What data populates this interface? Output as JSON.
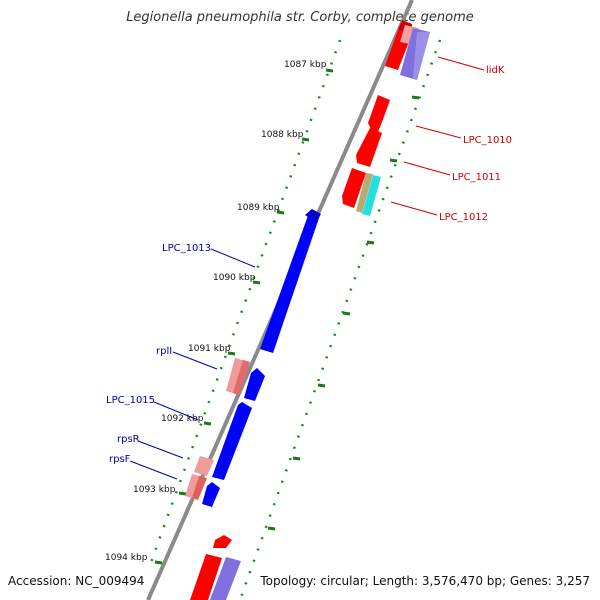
{
  "title": "Legionella pneumophila str. Corby, complete genome",
  "footer": {
    "accession": "Accession: NC_009494",
    "stats": "Topology: circular; Length: 3,576,470 bp; Genes: 3,257"
  },
  "scale_ticks": [
    {
      "label": "1087 kbp"
    },
    {
      "label": "1088 kbp"
    },
    {
      "label": "1089 kbp"
    },
    {
      "label": "1090 kbp"
    },
    {
      "label": "1091 kbp"
    },
    {
      "label": "1092 kbp"
    },
    {
      "label": "1093 kbp"
    },
    {
      "label": "1094 kbp"
    }
  ],
  "forward_gene_labels": [
    {
      "label": "lidK"
    },
    {
      "label": "LPC_1010"
    },
    {
      "label": "LPC_1011"
    },
    {
      "label": "LPC_1012"
    }
  ],
  "reverse_gene_labels": [
    {
      "label": "LPC_1013"
    },
    {
      "label": "rplI"
    },
    {
      "label": "LPC_1015"
    },
    {
      "label": "rpsR"
    },
    {
      "label": "rpsF"
    }
  ],
  "colors": {
    "forward_cds": "#ff0000",
    "reverse_cds": "#0000ff",
    "forward_gene": "#ee8888",
    "reverse_gene_pale": "#f09a9a",
    "other_feature": "#8080dd",
    "cyan_feature": "#22dddd",
    "tan_feature": "#b5a66e",
    "backbone": "#888888",
    "tick_green": "#1a7a1a",
    "label_red": "#cc0000",
    "label_blue": "#0000aa"
  }
}
